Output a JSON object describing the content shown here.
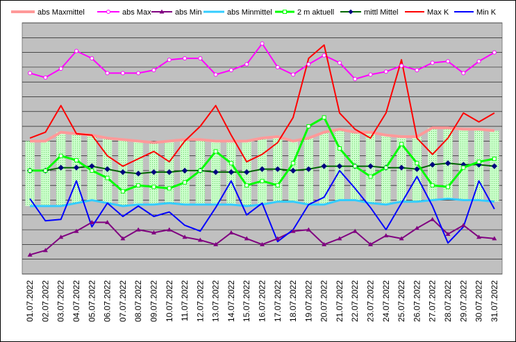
{
  "chart_data": {
    "type": "line",
    "title": "",
    "xlabel": "",
    "ylabel": "",
    "grid": true,
    "legend_position": "top",
    "y_scale_note": "no y-axis tick labels are printed",
    "categories": [
      "01.07.2022",
      "02.07.2022",
      "03.07.2022",
      "04.07.2022",
      "05.07.2022",
      "06.07.2022",
      "07.07.2022",
      "08.07.2022",
      "09.07.2022",
      "10.07.2022",
      "11.07.2022",
      "12.07.2022",
      "13.07.2022",
      "14.07.2022",
      "15.07.2022",
      "16.07.2022",
      "17.07.2022",
      "18.07.2022",
      "19.07.2022",
      "20.07.2022",
      "21.07.2022",
      "22.07.2022",
      "23.07.2022",
      "24.07.2022",
      "25.07.2022",
      "26.07.2022",
      "27.07.2022",
      "28.07.2022",
      "29.07.2022",
      "30.07.2022",
      "31.07.2022"
    ],
    "ylim": [
      -2,
      15
    ],
    "series": [
      {
        "name": "abs Maxmittel",
        "color": "#ff9999",
        "style": "line",
        "values": [
          7.0,
          7.0,
          7.6,
          7.5,
          7.4,
          7.2,
          7.1,
          7.0,
          6.9,
          7.0,
          7.1,
          7.1,
          7.0,
          7.0,
          7.0,
          7.2,
          7.3,
          7.0,
          7.2,
          7.6,
          7.8,
          7.6,
          7.6,
          7.4,
          7.3,
          7.3,
          7.9,
          7.9,
          7.8,
          7.8,
          7.7
        ]
      },
      {
        "name": "abs Max",
        "color": "#ff00ff",
        "style": "line-marker-open",
        "values": [
          11.6,
          11.3,
          11.9,
          13.1,
          12.6,
          11.6,
          11.6,
          11.6,
          11.8,
          12.5,
          12.6,
          12.6,
          11.5,
          11.8,
          12.2,
          13.6,
          12.0,
          11.5,
          12.2,
          12.8,
          12.3,
          11.2,
          11.5,
          11.7,
          12.1,
          11.8,
          12.3,
          12.4,
          11.6,
          12.4,
          13.0
        ]
      },
      {
        "name": "abs Min",
        "color": "#800080",
        "style": "line-marker-tri",
        "values": [
          -0.7,
          -0.4,
          0.5,
          0.9,
          1.5,
          1.5,
          0.4,
          1.0,
          0.8,
          1.0,
          0.5,
          0.3,
          0.0,
          0.8,
          0.4,
          0.0,
          0.4,
          0.9,
          1.0,
          0.0,
          0.4,
          0.9,
          0.0,
          0.6,
          0.4,
          1.1,
          1.7,
          0.7,
          1.3,
          0.5,
          0.4
        ]
      },
      {
        "name": "abs Minmittel",
        "color": "#33ccff",
        "style": "line",
        "values": [
          2.6,
          2.6,
          2.6,
          2.8,
          3.0,
          2.8,
          2.6,
          2.7,
          2.7,
          2.8,
          2.7,
          2.7,
          2.7,
          2.7,
          2.6,
          2.7,
          2.9,
          2.9,
          2.7,
          2.7,
          3.0,
          3.0,
          2.8,
          2.7,
          2.9,
          2.9,
          3.0,
          3.1,
          3.0,
          3.0,
          2.9
        ]
      },
      {
        "name": "2 m aktuell",
        "color": "#00ff00",
        "style": "line-marker-square",
        "values": [
          5.0,
          5.0,
          6.0,
          5.7,
          5.0,
          4.5,
          3.6,
          4.0,
          3.9,
          3.8,
          4.2,
          5.0,
          6.3,
          5.5,
          4.0,
          4.3,
          4.0,
          5.5,
          8.0,
          8.6,
          6.5,
          5.3,
          4.6,
          5.2,
          6.8,
          5.5,
          4.0,
          3.9,
          5.2,
          5.6,
          5.8
        ]
      },
      {
        "name": "mittl Mittel",
        "color": "#006600",
        "style": "line-marker-diamond",
        "values": [
          5.0,
          5.0,
          5.2,
          5.2,
          5.3,
          5.1,
          4.9,
          4.8,
          4.9,
          4.9,
          5.0,
          5.0,
          4.9,
          4.9,
          4.9,
          5.1,
          5.1,
          5.0,
          5.1,
          5.3,
          5.3,
          5.3,
          5.3,
          5.2,
          5.2,
          5.1,
          5.4,
          5.5,
          5.4,
          5.4,
          5.3
        ]
      },
      {
        "name": "Max K",
        "color": "#ff0000",
        "style": "line",
        "values": [
          7.2,
          7.6,
          9.4,
          7.5,
          7.4,
          6.0,
          5.3,
          5.8,
          6.3,
          5.6,
          7.0,
          8.0,
          9.4,
          7.4,
          5.6,
          6.1,
          6.9,
          8.6,
          12.6,
          13.5,
          8.9,
          7.8,
          7.2,
          8.9,
          12.5,
          7.2,
          6.1,
          7.2,
          8.9,
          8.3,
          8.9
        ]
      },
      {
        "name": "Min K",
        "color": "#0000ff",
        "style": "line",
        "values": [
          3.1,
          1.6,
          1.7,
          4.3,
          1.2,
          2.8,
          1.9,
          2.6,
          1.9,
          2.2,
          1.3,
          0.9,
          2.5,
          4.3,
          2.0,
          2.8,
          0.2,
          1.0,
          2.7,
          3.2,
          5.0,
          3.8,
          2.5,
          1.0,
          2.8,
          4.6,
          2.6,
          0.1,
          1.2,
          4.3,
          2.4
        ]
      }
    ],
    "colors": {
      "plot_background": "#c0c0c0",
      "gridline": "#000000",
      "range_band_fill": "#ccffcc"
    }
  }
}
